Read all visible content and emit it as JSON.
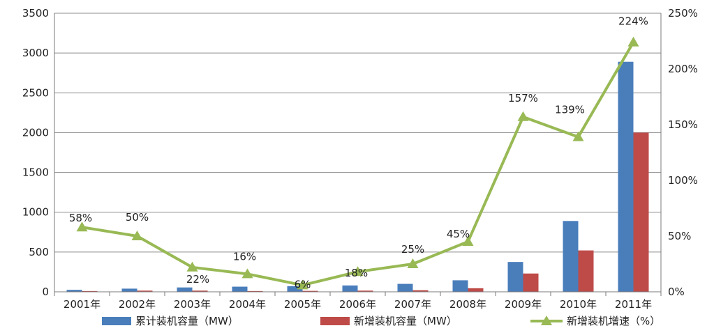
{
  "chart_data": {
    "type": "bar",
    "categories": [
      "2001年",
      "2002年",
      "2003年",
      "2004年",
      "2005年",
      "2006年",
      "2007年",
      "2008年",
      "2009年",
      "2010年",
      "2011年"
    ],
    "series": [
      {
        "name": "累计装机容量（MW）",
        "type": "bar",
        "axis": "left",
        "color": "#4a7ebb",
        "values": [
          25,
          40,
          55,
          65,
          70,
          80,
          100,
          145,
          375,
          890,
          2890
        ]
      },
      {
        "name": "新增装机容量（MW）",
        "type": "bar",
        "axis": "left",
        "color": "#be4b48",
        "values": [
          10,
          15,
          15,
          10,
          12,
          15,
          20,
          45,
          230,
          520,
          2000
        ]
      },
      {
        "name": "新增装机增速（%）",
        "type": "line",
        "axis": "right",
        "color": "#98b954",
        "values": [
          58,
          50,
          22,
          16,
          6,
          18,
          25,
          45,
          157,
          139,
          224
        ],
        "labels": [
          "58%",
          "50%",
          "22%",
          "16%",
          "6%",
          "18%",
          "25%",
          "45%",
          "157%",
          "139%",
          "224%"
        ]
      }
    ],
    "yaxis_left": {
      "min": 0,
      "max": 3500,
      "ticks": [
        "0",
        "500",
        "1000",
        "1500",
        "2000",
        "2500",
        "3000",
        "3500"
      ]
    },
    "yaxis_right": {
      "min": 0,
      "max": 250,
      "ticks": [
        "0%",
        "50%",
        "100%",
        "150%",
        "200%",
        "250%"
      ]
    },
    "grid": true,
    "legend_position": "bottom"
  }
}
